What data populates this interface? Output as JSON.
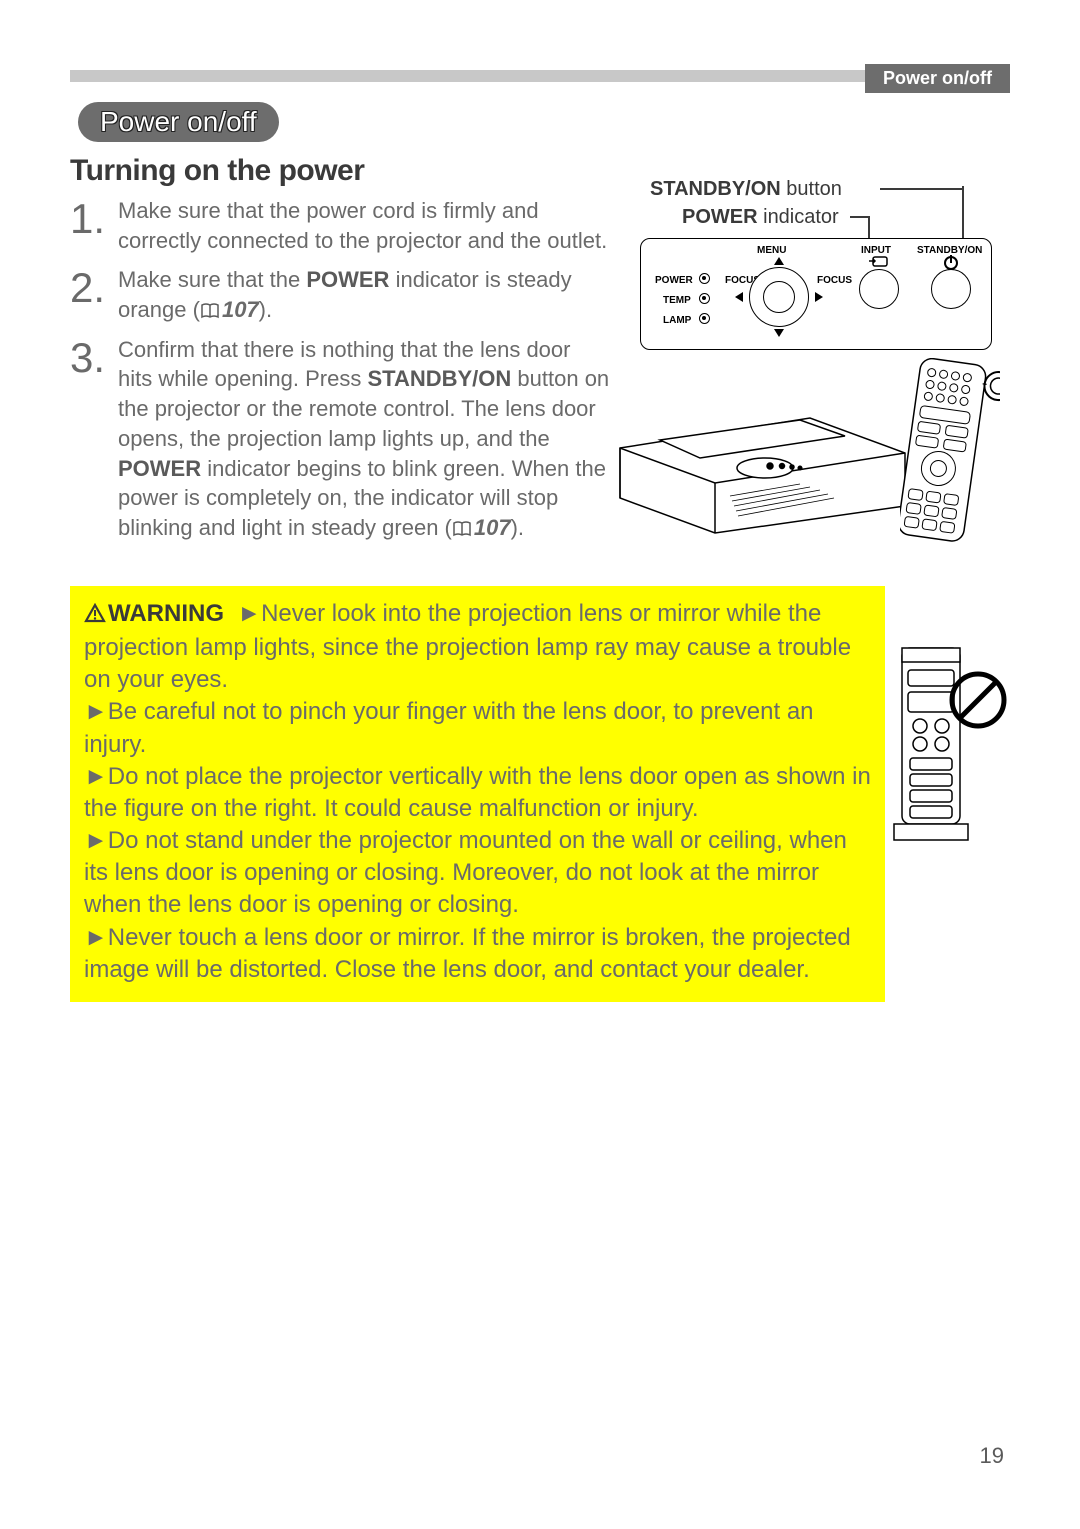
{
  "page": {
    "number": "19",
    "header_tab": "Power on/off",
    "section_pill": "Power on/off",
    "subtitle": "Turning on the power"
  },
  "steps": [
    {
      "num": "1.",
      "html": "Make sure that the power cord is firmly and correctly connected to the projector and the outlet."
    },
    {
      "num": "2.",
      "html": "Make sure that the <b>POWER</b> indicator is steady orange (<span class='book-icon'><svg viewBox='0 0 20 16'><path d='M2 2 Q6 0 10 2 Q14 0 18 2 L18 14 Q14 12 10 14 Q6 12 2 14 Z M10 2 L10 14' fill='none' stroke='#5a5a5a' stroke-width='1.5'/></svg></span><span class='pageref'>107</span>)."
    },
    {
      "num": "3.",
      "html": "Confirm that there is nothing that the lens door hits while opening. Press <b>STANDBY/ON</b> button on the projector or the remote control. The lens door opens, the projection lamp lights up, and the <b>POWER</b> indicator begins to blink green. When the power is completely on, the indicator will stop blinking and light in steady green (<span class='book-icon'><svg viewBox='0 0 20 16'><path d='M2 2 Q6 0 10 2 Q14 0 18 2 L18 14 Q14 12 10 14 Q6 12 2 14 Z M10 2 L10 14' fill='none' stroke='#5a5a5a' stroke-width='1.5'/></svg></span><span class='pageref'>107</span>)."
    }
  ],
  "diagram": {
    "label_standby": "STANDBY/ON",
    "label_standby_suffix": " button",
    "label_power": "POWER",
    "label_power_suffix": " indicator",
    "panel": {
      "menu": "MENU",
      "input": "INPUT",
      "standby": "STANDBY/ON",
      "power": "POWER",
      "temp": "TEMP",
      "lamp": "LAMP",
      "focus_l": "FOCUS",
      "focus_r": "FOCUS"
    }
  },
  "warning": {
    "label": "WARNING",
    "items": [
      "Never look into the projection lens or mirror while the projection lamp lights, since the projection lamp ray may cause a trouble on your eyes.",
      "Be careful not to pinch your finger with the lens door, to prevent an injury.",
      "Do not place the projector vertically with the lens door open as shown in the figure on the right. It could cause malfunction or injury.",
      "Do not stand under the projector mounted on the wall or ceiling, when its lens door is opening or closing. Moreover, do not look at the mirror when the lens door is opening or closing.",
      "Never touch a lens door or mirror. If the mirror is broken, the projected image will be distorted. Close the lens door, and contact your dealer."
    ]
  },
  "colors": {
    "gray_bar": "#c8c8c8",
    "header_bg": "#6d6d6d",
    "text": "#5a5a5a",
    "warning_bg": "#ffff00"
  }
}
